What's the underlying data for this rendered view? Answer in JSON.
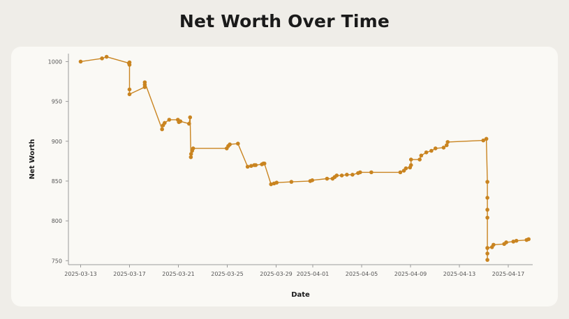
{
  "chart_data": {
    "type": "line",
    "title": "Net Worth Over Time",
    "xlabel": "Date",
    "ylabel": "Net Worth",
    "ylim": [
      745,
      1010
    ],
    "xlim": [
      "2025-03-12",
      "2025-04-19"
    ],
    "grid": false,
    "legend": "none",
    "color": "#c98420",
    "y_ticks": [
      750,
      800,
      850,
      900,
      950,
      1000
    ],
    "x_ticks": [
      "2025-03-13",
      "2025-03-17",
      "2025-03-21",
      "2025-03-25",
      "2025-03-29",
      "2025-04-01",
      "2025-04-05",
      "2025-04-09",
      "2025-04-13",
      "2025-04-17"
    ],
    "x": [
      "2025-03-13",
      "2025-03-14 18:00",
      "2025-03-15 03:00",
      "2025-03-16 23:00",
      "2025-03-17",
      "2025-03-17",
      "2025-03-17",
      "2025-03-17",
      "2025-03-18 06:00",
      "2025-03-18 06:00",
      "2025-03-18 06:00",
      "2025-03-19 16:00",
      "2025-03-19 18:00",
      "2025-03-19 21:00",
      "2025-03-20 06:00",
      "2025-03-20 23:00",
      "2025-03-21 01:00",
      "2025-03-21 04:00",
      "2025-03-21 21:00",
      "2025-03-21 23:00",
      "2025-03-22 00:30",
      "2025-03-22 01:00",
      "2025-03-22 03:00",
      "2025-03-22 05:00",
      "2025-03-24 23:00",
      "2025-03-25 02:00",
      "2025-03-25 05:00",
      "2025-03-25 21:00",
      "2025-03-26 16:00",
      "2025-03-26 23:00",
      "2025-03-27 05:00",
      "2025-03-27 08:00",
      "2025-03-27 20:00",
      "2025-03-27 23:00",
      "2025-03-28 01:00",
      "2025-03-28 14:00",
      "2025-03-28 20:00",
      "2025-03-29 01:00",
      "2025-03-30 06:00",
      "2025-03-31 19:00",
      "2025-03-31 23:00",
      "2025-04-02 04:00",
      "2025-04-02 15:00",
      "2025-04-02 19:00",
      "2025-04-02 23:00",
      "2025-04-03 09:00",
      "2025-04-03 19:00",
      "2025-04-04 06:00",
      "2025-04-04 17:00",
      "2025-04-04 21:00",
      "2025-04-05 19:00",
      "2025-04-08 04:00",
      "2025-04-08 11:00",
      "2025-04-08 15:00",
      "2025-04-08 23:00",
      "2025-04-09 01:00",
      "2025-04-09 01:00",
      "2025-04-09 18:00",
      "2025-04-09 21:00",
      "2025-04-10 07:00",
      "2025-04-10 17:00",
      "2025-04-11 01:00",
      "2025-04-11 17:00",
      "2025-04-11 23:00",
      "2025-04-12 01:00",
      "2025-04-14 23:00",
      "2025-04-15 05:00",
      "2025-04-15 07:00",
      "2025-04-15 07:00",
      "2025-04-15 07:00",
      "2025-04-15 07:00",
      "2025-04-15 07:00",
      "2025-04-15 07:00",
      "2025-04-15 07:00",
      "2025-04-15 07:00",
      "2025-04-15 16:00",
      "2025-04-15 19:00",
      "2025-04-16 16:00",
      "2025-04-16 20:00",
      "2025-04-17 10:00",
      "2025-04-17 16:00",
      "2025-04-18 12:00",
      "2025-04-18 16:00"
    ],
    "y": [
      1000,
      1004,
      1006,
      998,
      999,
      996,
      965,
      959,
      968,
      971,
      974,
      915,
      920,
      923,
      927,
      927,
      924,
      925,
      922,
      930,
      880,
      884,
      888,
      891,
      891,
      894,
      896,
      897,
      868,
      869,
      870,
      870,
      871,
      872,
      872,
      846,
      847,
      848,
      849,
      850,
      851,
      853,
      853,
      855,
      857,
      857,
      858,
      858,
      860,
      861,
      861,
      861,
      863,
      866,
      867,
      870,
      877,
      877,
      882,
      886,
      888,
      891,
      892,
      895,
      899,
      901,
      903,
      849,
      829,
      814,
      804,
      766,
      759,
      751,
      766,
      767,
      770,
      771,
      773,
      774,
      775,
      776,
      777
    ]
  }
}
